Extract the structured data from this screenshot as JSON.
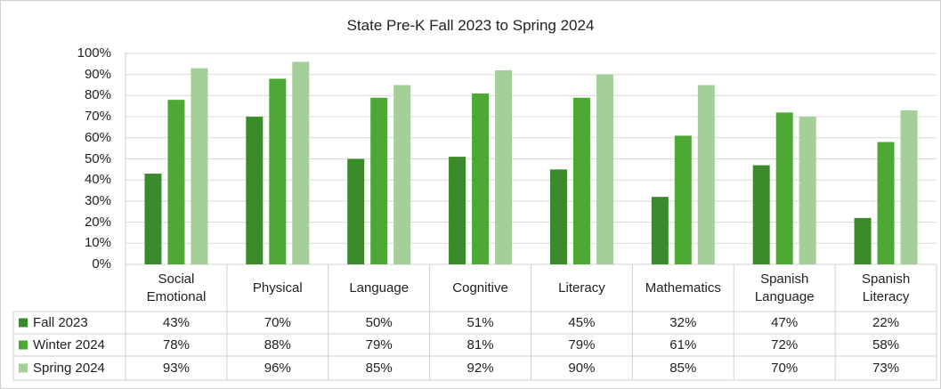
{
  "chart_data": {
    "type": "bar",
    "title": "State Pre-K Fall 2023 to Spring 2024",
    "categories": [
      "Social Emotional",
      "Physical",
      "Language",
      "Cognitive",
      "Literacy",
      "Mathematics",
      "Spanish Language",
      "Spanish Literacy"
    ],
    "series": [
      {
        "name": "Fall 2023",
        "color": "#3b8a2c",
        "values": [
          43,
          70,
          50,
          51,
          45,
          32,
          47,
          22
        ],
        "value_labels": [
          "43%",
          "70%",
          "50%",
          "51%",
          "45%",
          "32%",
          "47%",
          "22%"
        ]
      },
      {
        "name": "Winter 2024",
        "color": "#4ea836",
        "values": [
          78,
          88,
          79,
          81,
          79,
          61,
          72,
          58
        ],
        "value_labels": [
          "78%",
          "88%",
          "79%",
          "81%",
          "79%",
          "61%",
          "72%",
          "58%"
        ]
      },
      {
        "name": "Spring 2024",
        "color": "#a5cf98",
        "values": [
          93,
          96,
          85,
          92,
          90,
          85,
          70,
          73
        ],
        "value_labels": [
          "93%",
          "96%",
          "85%",
          "92%",
          "90%",
          "85%",
          "70%",
          "73%"
        ]
      }
    ],
    "ylim": [
      0,
      100
    ],
    "yticks": [
      {
        "value": 0,
        "label": "0%"
      },
      {
        "value": 10,
        "label": "10%"
      },
      {
        "value": 20,
        "label": "20%"
      },
      {
        "value": 30,
        "label": "30%"
      },
      {
        "value": 40,
        "label": "40%"
      },
      {
        "value": 50,
        "label": "50%"
      },
      {
        "value": 60,
        "label": "60%"
      },
      {
        "value": 70,
        "label": "70%"
      },
      {
        "value": 80,
        "label": "80%"
      },
      {
        "value": 90,
        "label": "90%"
      },
      {
        "value": 100,
        "label": "100%"
      }
    ],
    "grid": true
  }
}
